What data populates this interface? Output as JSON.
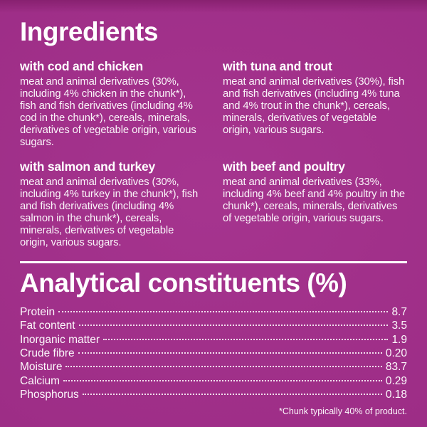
{
  "colors": {
    "background": "#A22C8A",
    "background_top_band": "#801C68",
    "text": "#FFFFFF"
  },
  "ingredients": {
    "heading": "Ingredients",
    "variants": [
      {
        "name": "with cod and chicken",
        "text": "meat and animal derivatives (30%, including 4% chicken in the chunk*), fish and fish derivatives (including 4% cod in the chunk*), cereals, minerals, derivatives of vegetable origin, various sugars."
      },
      {
        "name": "with tuna and trout",
        "text": "meat and animal derivatives (30%), fish and fish derivatives (including 4% tuna and 4% trout in the chunk*), cereals, minerals, derivatives of vegetable origin, various sugars."
      },
      {
        "name": "with salmon and turkey",
        "text": "meat and animal derivatives (30%, including 4% turkey in the chunk*), fish and fish derivatives (including 4% salmon in the chunk*), cereals, minerals, derivatives of vegetable origin, various sugars."
      },
      {
        "name": "with beef and poultry",
        "text": "meat and animal derivatives (33%, including 4% beef and 4% poultry in the chunk*), cereals, minerals, derivatives of vegetable origin, various sugars."
      }
    ]
  },
  "analytical": {
    "heading": "Analytical constituents (%)",
    "rows": [
      {
        "label": "Protein",
        "value": "8.7"
      },
      {
        "label": "Fat content",
        "value": "3.5"
      },
      {
        "label": "Inorganic matter",
        "value": "1.9"
      },
      {
        "label": "Crude fibre",
        "value": "0.20"
      },
      {
        "label": "Moisture",
        "value": "83.7"
      },
      {
        "label": "Calcium",
        "value": "0.29"
      },
      {
        "label": "Phosphorus",
        "value": "0.18"
      }
    ]
  },
  "footnote": "*Chunk typically 40% of product."
}
